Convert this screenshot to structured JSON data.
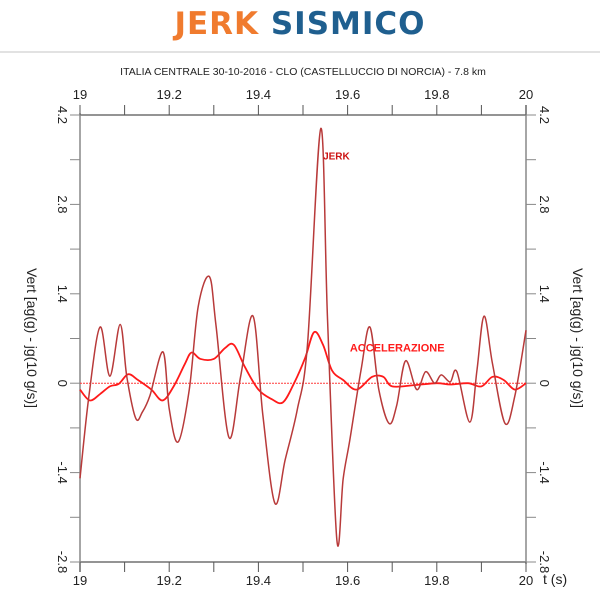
{
  "header": {
    "brand_word_1": "JERK",
    "brand_word_2": "SISMICO",
    "brand_color_1": "#f07b2e",
    "brand_color_2": "#1f5f8f"
  },
  "chart_data": {
    "type": "line",
    "title": "ITALIA CENTRALE 30-10-2016 - CLO (CASTELLUCCIO DI NORCIA) - 7.8 km",
    "xlabel": "t (s)",
    "ylabel": "Vert  [ag(g) - jg(10 g/s)]",
    "xlim": [
      19,
      20
    ],
    "ylim": [
      -2.8,
      4.2
    ],
    "x_ticks": [
      "19",
      "19.2",
      "19.4",
      "19.6",
      "19.8",
      "20"
    ],
    "y_ticks": [
      "4.2",
      "2.8",
      "1.4",
      "0",
      "-1.4",
      "-2.8"
    ],
    "grid": false,
    "zero_line": true,
    "annotations": [
      {
        "text": "JERK",
        "x": 19.545,
        "y": 3.5,
        "color": "#cc1111"
      },
      {
        "text": "ACCELERAZIONE",
        "x": 19.605,
        "y": 0.5,
        "color": "#ff1a1a"
      }
    ],
    "series": [
      {
        "name": "JERK",
        "color": "#b83a3a",
        "points": [
          [
            19.0,
            -1.49
          ],
          [
            19.02,
            -0.2
          ],
          [
            19.045,
            0.88
          ],
          [
            19.067,
            0.11
          ],
          [
            19.09,
            0.92
          ],
          [
            19.105,
            0.1
          ],
          [
            19.125,
            -0.55
          ],
          [
            19.14,
            -0.45
          ],
          [
            19.157,
            -0.19
          ],
          [
            19.186,
            0.49
          ],
          [
            19.2,
            -0.4
          ],
          [
            19.22,
            -0.92
          ],
          [
            19.245,
            -0.1
          ],
          [
            19.265,
            1.2
          ],
          [
            19.29,
            1.67
          ],
          [
            19.305,
            0.9
          ],
          [
            19.334,
            -0.85
          ],
          [
            19.36,
            0.1
          ],
          [
            19.388,
            1.05
          ],
          [
            19.41,
            -0.5
          ],
          [
            19.437,
            -1.88
          ],
          [
            19.46,
            -1.2
          ],
          [
            19.487,
            -0.42
          ],
          [
            19.51,
            0.6
          ],
          [
            19.54,
            3.99
          ],
          [
            19.555,
            1.0
          ],
          [
            19.576,
            -2.46
          ],
          [
            19.59,
            -1.5
          ],
          [
            19.605,
            -0.89
          ],
          [
            19.63,
            0.2
          ],
          [
            19.65,
            0.88
          ],
          [
            19.67,
            -0.1
          ],
          [
            19.693,
            -0.63
          ],
          [
            19.71,
            -0.35
          ],
          [
            19.73,
            0.35
          ],
          [
            19.755,
            -0.1
          ],
          [
            19.775,
            0.18
          ],
          [
            19.795,
            0.0
          ],
          [
            19.81,
            0.13
          ],
          [
            19.83,
            0.02
          ],
          [
            19.845,
            0.18
          ],
          [
            19.874,
            -0.61
          ],
          [
            19.89,
            0.2
          ],
          [
            19.906,
            1.05
          ],
          [
            19.925,
            0.3
          ],
          [
            19.953,
            -0.63
          ],
          [
            19.975,
            -0.2
          ],
          [
            20.0,
            0.83
          ]
        ]
      },
      {
        "name": "ACCELERAZIONE",
        "color": "#ff1a1a",
        "points": [
          [
            19.0,
            -0.1
          ],
          [
            19.022,
            -0.27
          ],
          [
            19.045,
            -0.17
          ],
          [
            19.067,
            -0.05
          ],
          [
            19.087,
            -0.01
          ],
          [
            19.108,
            0.14
          ],
          [
            19.13,
            0.05
          ],
          [
            19.16,
            -0.1
          ],
          [
            19.185,
            -0.27
          ],
          [
            19.21,
            -0.05
          ],
          [
            19.235,
            0.3
          ],
          [
            19.25,
            0.48
          ],
          [
            19.27,
            0.38
          ],
          [
            19.3,
            0.38
          ],
          [
            19.325,
            0.55
          ],
          [
            19.345,
            0.6
          ],
          [
            19.37,
            0.25
          ],
          [
            19.4,
            -0.1
          ],
          [
            19.43,
            -0.25
          ],
          [
            19.455,
            -0.3
          ],
          [
            19.48,
            0.0
          ],
          [
            19.505,
            0.4
          ],
          [
            19.525,
            0.8
          ],
          [
            19.545,
            0.6
          ],
          [
            19.565,
            0.2
          ],
          [
            19.59,
            0.05
          ],
          [
            19.62,
            -0.1
          ],
          [
            19.655,
            0.1
          ],
          [
            19.68,
            0.1
          ],
          [
            19.7,
            -0.05
          ],
          [
            19.75,
            -0.03
          ],
          [
            19.8,
            0.0
          ],
          [
            19.83,
            -0.02
          ],
          [
            19.87,
            0.0
          ],
          [
            19.9,
            -0.05
          ],
          [
            19.925,
            0.1
          ],
          [
            19.95,
            0.05
          ],
          [
            19.975,
            -0.1
          ],
          [
            20.0,
            0.0
          ]
        ]
      }
    ]
  }
}
